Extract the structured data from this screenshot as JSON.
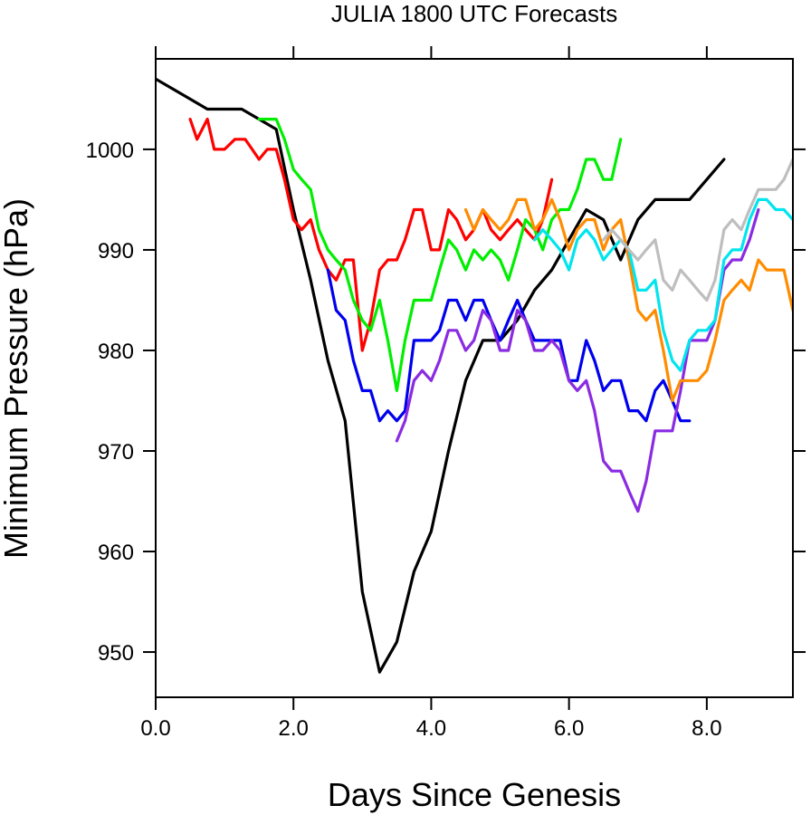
{
  "chart_data": {
    "type": "line",
    "title": "JULIA 1800 UTC Forecasts",
    "xlabel": "Days Since Genesis",
    "ylabel": "Minimum Pressure (hPa)",
    "xlim": [
      0,
      9.25
    ],
    "ylim": [
      945.5,
      1009.0
    ],
    "xticks": [
      0,
      2,
      4,
      6,
      8
    ],
    "xtick_labels": [
      "0.0",
      "2.0",
      "4.0",
      "6.0",
      "8.0"
    ],
    "yticks": [
      950,
      960,
      970,
      980,
      990,
      1000
    ],
    "ytick_labels": [
      "950",
      "960",
      "970",
      "980",
      "990",
      "1000"
    ],
    "grid": false,
    "legend": "none",
    "series": [
      {
        "color": "#000000",
        "x": [
          0,
          0.25,
          0.5,
          0.75,
          1.0,
          1.25,
          1.5,
          1.75,
          2.0,
          2.25,
          2.5,
          2.75,
          3.0,
          3.25,
          3.5,
          3.75,
          4.0,
          4.25,
          4.5,
          4.75,
          5.0,
          5.25,
          5.5,
          5.75,
          6.0,
          6.25,
          6.5,
          6.75,
          7.0,
          7.25,
          7.5,
          7.75,
          8.0,
          8.25
        ],
        "y": [
          1007,
          1006,
          1005,
          1004,
          1004,
          1004,
          1003,
          1002,
          994,
          987,
          979,
          973,
          956,
          948,
          951,
          958,
          962,
          970,
          977,
          981,
          981,
          983,
          986,
          988,
          991,
          994,
          993,
          989,
          993,
          995,
          995,
          995,
          997,
          999
        ]
      },
      {
        "color": "#ff0000",
        "x": [
          0.5,
          0.6,
          0.75,
          0.85,
          1.0,
          1.15,
          1.3,
          1.4,
          1.5,
          1.62,
          1.75,
          1.87,
          2.0,
          2.12,
          2.25,
          2.37,
          2.5,
          2.62,
          2.75,
          2.87,
          3.0,
          3.12,
          3.25,
          3.37,
          3.5,
          3.62,
          3.75,
          3.87,
          4.0,
          4.12,
          4.25,
          4.37,
          4.5,
          4.62,
          4.75,
          4.87,
          5.0,
          5.12,
          5.25,
          5.37,
          5.5,
          5.62,
          5.75
        ],
        "y": [
          1003,
          1001,
          1003,
          1000,
          1000,
          1001,
          1001,
          1000,
          999,
          1000,
          1000,
          997,
          993,
          992,
          993,
          990,
          988,
          987,
          989,
          989,
          980,
          983,
          988,
          989,
          989,
          991,
          994,
          994,
          990,
          990,
          994,
          993,
          991,
          992,
          994,
          992,
          991,
          992,
          993,
          992,
          991,
          993,
          997
        ]
      },
      {
        "color": "#00ee00",
        "x": [
          1.5,
          1.62,
          1.75,
          1.87,
          2.0,
          2.12,
          2.25,
          2.37,
          2.5,
          2.62,
          2.75,
          2.87,
          3.0,
          3.12,
          3.25,
          3.37,
          3.5,
          3.62,
          3.75,
          3.87,
          4.0,
          4.12,
          4.25,
          4.37,
          4.5,
          4.62,
          4.75,
          4.87,
          5.0,
          5.12,
          5.25,
          5.37,
          5.5,
          5.62,
          5.75,
          5.87,
          6.0,
          6.12,
          6.25,
          6.37,
          6.5,
          6.62,
          6.75
        ],
        "y": [
          1003,
          1003,
          1003,
          1001,
          998,
          997,
          996,
          992,
          990,
          989,
          988,
          985,
          983,
          982,
          985,
          981,
          976,
          981,
          985,
          985,
          985,
          988,
          991,
          990,
          988,
          990,
          989,
          990,
          989,
          987,
          990,
          993,
          992,
          990,
          993,
          994,
          994,
          996,
          999,
          999,
          997,
          997,
          1001
        ]
      },
      {
        "color": "#0000ee",
        "x": [
          2.5,
          2.62,
          2.75,
          2.87,
          3.0,
          3.12,
          3.25,
          3.37,
          3.5,
          3.62,
          3.75,
          3.87,
          4.0,
          4.12,
          4.25,
          4.37,
          4.5,
          4.62,
          4.75,
          4.87,
          5.0,
          5.12,
          5.25,
          5.37,
          5.5,
          5.62,
          5.75,
          5.87,
          6.0,
          6.12,
          6.25,
          6.37,
          6.5,
          6.62,
          6.75,
          6.87,
          7.0,
          7.12,
          7.25,
          7.37,
          7.5,
          7.62,
          7.75
        ],
        "y": [
          988,
          984,
          983,
          979,
          976,
          976,
          973,
          974,
          973,
          974,
          981,
          981,
          981,
          982,
          985,
          985,
          983,
          985,
          985,
          983,
          981,
          983,
          985,
          983,
          981,
          981,
          981,
          981,
          977,
          977,
          981,
          979,
          976,
          977,
          977,
          974,
          974,
          973,
          976,
          977,
          975,
          973,
          973
        ]
      },
      {
        "color": "#8a2be2",
        "x": [
          3.5,
          3.62,
          3.75,
          3.87,
          4.0,
          4.12,
          4.25,
          4.37,
          4.5,
          4.62,
          4.75,
          4.87,
          5.0,
          5.12,
          5.25,
          5.37,
          5.5,
          5.62,
          5.75,
          5.87,
          6.0,
          6.12,
          6.25,
          6.37,
          6.5,
          6.62,
          6.75,
          6.87,
          7.0,
          7.12,
          7.25,
          7.37,
          7.5,
          7.62,
          7.75,
          7.87,
          8.0,
          8.12,
          8.25,
          8.37,
          8.5,
          8.62,
          8.75
        ],
        "y": [
          971,
          973,
          977,
          978,
          977,
          979,
          982,
          982,
          980,
          981,
          984,
          983,
          980,
          980,
          984,
          983,
          980,
          980,
          981,
          980,
          977,
          976,
          977,
          974,
          969,
          968,
          968,
          966,
          964,
          967,
          972,
          972,
          972,
          976,
          981,
          981,
          981,
          983,
          988,
          989,
          989,
          991,
          994
        ]
      },
      {
        "color": "#ff8c00",
        "x": [
          4.5,
          4.62,
          4.75,
          4.87,
          5.0,
          5.12,
          5.25,
          5.37,
          5.5,
          5.62,
          5.75,
          5.87,
          6.0,
          6.12,
          6.25,
          6.37,
          6.5,
          6.62,
          6.75,
          6.87,
          7.0,
          7.12,
          7.25,
          7.37,
          7.5,
          7.62,
          7.75,
          7.87,
          8.0,
          8.12,
          8.25,
          8.37,
          8.5,
          8.62,
          8.75,
          8.87,
          9.0,
          9.12,
          9.25
        ],
        "y": [
          994,
          992,
          994,
          993,
          992,
          993,
          995,
          995,
          992,
          993,
          995,
          993,
          990,
          992,
          993,
          993,
          990,
          992,
          993,
          989,
          984,
          983,
          984,
          980,
          975,
          977,
          977,
          977,
          978,
          981,
          985,
          986,
          987,
          986,
          989,
          988,
          988,
          988,
          984
        ]
      },
      {
        "color": "#00e5ee",
        "x": [
          5.5,
          5.62,
          5.75,
          5.87,
          6.0,
          6.12,
          6.25,
          6.37,
          6.5,
          6.62,
          6.75,
          6.87,
          7.0,
          7.12,
          7.25,
          7.37,
          7.5,
          7.62,
          7.75,
          7.87,
          8.0,
          8.12,
          8.25,
          8.37,
          8.5,
          8.62,
          8.75,
          8.87,
          9.0,
          9.12,
          9.25
        ],
        "y": [
          991,
          992,
          991,
          990,
          988,
          991,
          992,
          991,
          989,
          990,
          991,
          990,
          986,
          986,
          987,
          982,
          979,
          978,
          981,
          982,
          982,
          983,
          989,
          990,
          990,
          993,
          995,
          995,
          994,
          994,
          993
        ]
      },
      {
        "color": "#bebebe",
        "x": [
          6.5,
          6.62,
          6.75,
          6.87,
          7.0,
          7.12,
          7.25,
          7.37,
          7.5,
          7.62,
          7.75,
          7.87,
          8.0,
          8.12,
          8.25,
          8.37,
          8.5,
          8.62,
          8.75,
          8.87,
          9.0,
          9.12,
          9.25
        ],
        "y": [
          991,
          992,
          991,
          990,
          989,
          990,
          991,
          987,
          986,
          988,
          987,
          986,
          985,
          987,
          992,
          993,
          992,
          994,
          996,
          996,
          996,
          997,
          999
        ]
      }
    ]
  }
}
